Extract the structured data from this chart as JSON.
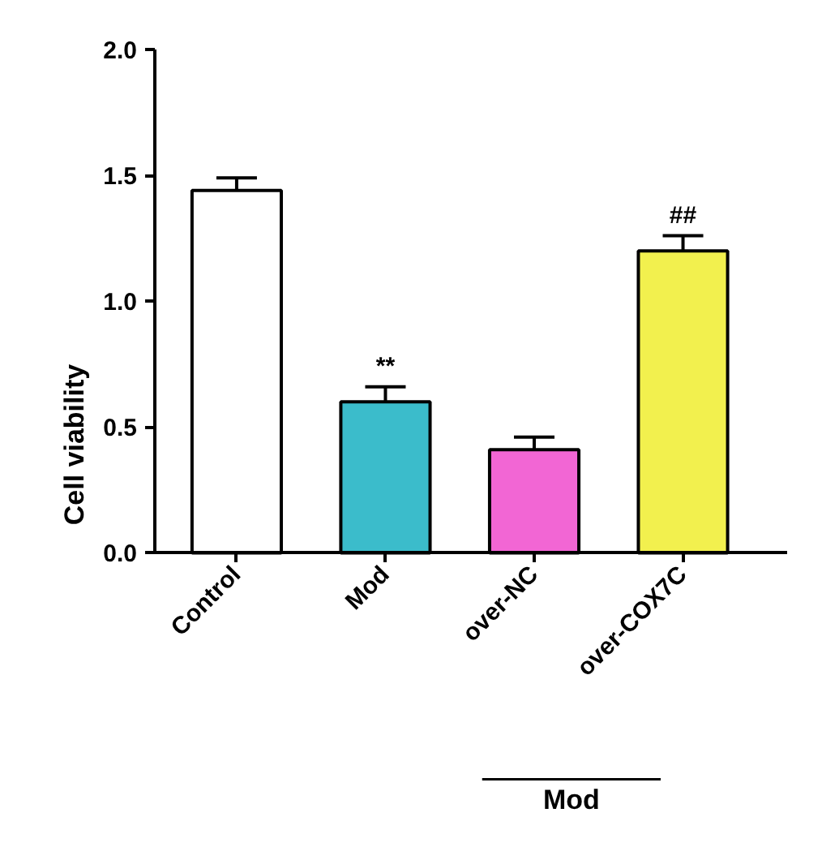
{
  "chart_data": {
    "type": "bar",
    "ylabel": "Cell viability",
    "categories": [
      "Control",
      "Mod",
      "over-NC",
      "over-COX7C"
    ],
    "values": [
      1.44,
      0.6,
      0.41,
      1.2
    ],
    "errors": [
      0.05,
      0.06,
      0.05,
      0.06
    ],
    "colors": [
      "#ffffff",
      "#3bbccb",
      "#f266d4",
      "#f2f04e"
    ],
    "ylim": [
      0,
      2
    ],
    "yticks": [
      {
        "value": 0,
        "label": "0.0"
      },
      {
        "value": 0.5,
        "label": "0.5"
      },
      {
        "value": 1,
        "label": "1.0"
      },
      {
        "value": 1.5,
        "label": "1.5"
      },
      {
        "value": 2,
        "label": "2.0"
      }
    ],
    "grid": false,
    "legend": false,
    "annotations": [
      {
        "text": "**",
        "x": "Mod",
        "y": 0.66
      },
      {
        "text": "##",
        "x": "over-COX7C",
        "y": 1.26
      },
      "Mod"
    ]
  }
}
